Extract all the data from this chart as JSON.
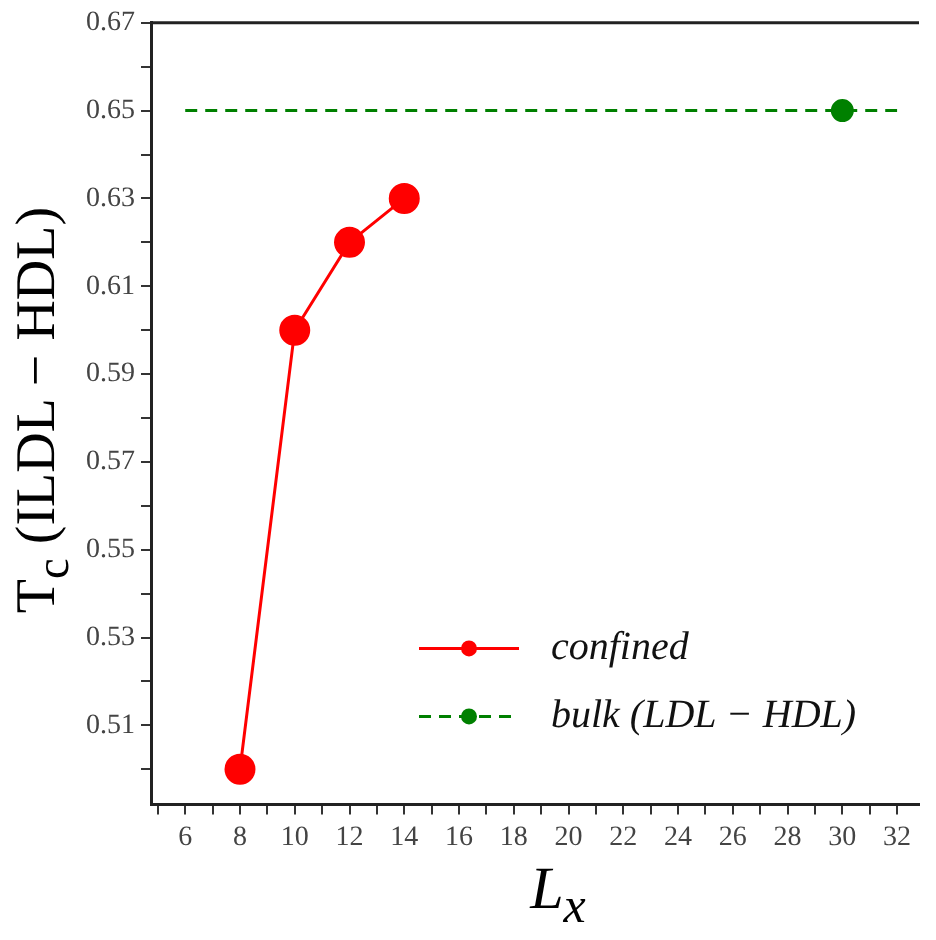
{
  "chart_data": {
    "type": "line",
    "xlabel": "L$_{x}$",
    "ylabel": "T$_{c}$ (ILDL − HDL)",
    "xlim": [
      4.75,
      32.8
    ],
    "ylim": [
      0.492,
      0.67
    ],
    "xticks": [
      {
        "value": 5,
        "label": null
      },
      6,
      {
        "value": 7,
        "label": null
      },
      8,
      {
        "value": 9,
        "label": null
      },
      10,
      {
        "value": 11,
        "label": null
      },
      12,
      {
        "value": 13,
        "label": null
      },
      14,
      {
        "value": 15,
        "label": null
      },
      16,
      {
        "value": 17,
        "label": null
      },
      18,
      {
        "value": 19,
        "label": null
      },
      20,
      {
        "value": 21,
        "label": null
      },
      22,
      {
        "value": 23,
        "label": null
      },
      24,
      {
        "value": 25,
        "label": null
      },
      26,
      {
        "value": 27,
        "label": null
      },
      28,
      {
        "value": 29,
        "label": null
      },
      30,
      {
        "value": 31,
        "label": null
      },
      32
    ],
    "yticks": [
      {
        "value": 0.5,
        "label": null
      },
      0.51,
      {
        "value": 0.52,
        "label": null
      },
      0.53,
      {
        "value": 0.54,
        "label": null
      },
      0.55,
      {
        "value": 0.56,
        "label": null
      },
      0.57,
      {
        "value": 0.58,
        "label": null
      },
      0.59,
      {
        "value": 0.6,
        "label": null
      },
      0.61,
      {
        "value": 0.62,
        "label": null
      },
      0.63,
      {
        "value": 0.64,
        "label": null
      },
      0.65,
      {
        "value": 0.66,
        "label": null
      },
      0.67
    ],
    "grid": false,
    "legend": "bottom right",
    "series": [
      {
        "name": "confined",
        "color": "#ff0000",
        "x": [
          8,
          10,
          12,
          14
        ],
        "values": [
          0.5,
          0.6,
          0.62,
          0.63
        ],
        "marker": "circle",
        "line_style": "solid"
      },
      {
        "name": "bulk (LDL − HDL)",
        "color": "#008000",
        "x": [
          6,
          32
        ],
        "values": [
          0.65,
          0.65
        ],
        "marker": "none",
        "line_style": "dashed"
      },
      {
        "type": "scatter",
        "color": "#008000",
        "x": [
          30
        ],
        "values": [
          0.65
        ],
        "marker": "circle"
      }
    ]
  }
}
